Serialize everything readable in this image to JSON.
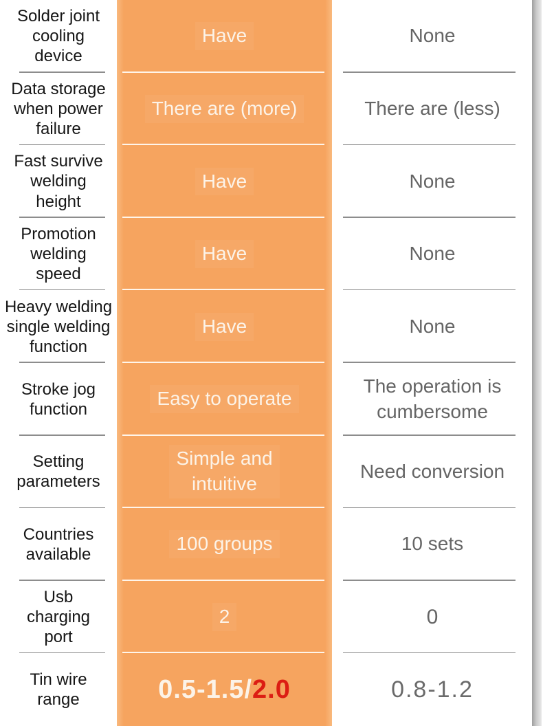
{
  "colors": {
    "accent_orange": "#f6a45f",
    "accent_orange_edge": "#f9b97e",
    "ours_text": "#fcf3e8",
    "highlight_red": "#dc1d13",
    "feature_text": "#161616",
    "theirs_text": "#656565",
    "divider_gray": "#8d8d8d",
    "divider_white": "#fffcf6"
  },
  "table": {
    "rows": [
      {
        "feature": "Solder joint\ncooling\ndevice",
        "ours": "Have",
        "theirs": "None"
      },
      {
        "feature": "Data storage\nwhen power\nfailure",
        "ours": "There are (more)",
        "theirs": "There are (less)"
      },
      {
        "feature": "Fast survive\nwelding\nheight",
        "ours": "Have",
        "theirs": "None"
      },
      {
        "feature": "Promotion\nwelding\nspeed",
        "ours": "Have",
        "theirs": "None"
      },
      {
        "feature": "Heavy welding\nsingle welding\nfunction",
        "ours": "Have",
        "theirs": "None"
      },
      {
        "feature": "Stroke jog\nfunction",
        "ours": "Easy to operate",
        "theirs": "The operation is\ncumbersome"
      },
      {
        "feature": "Setting\nparameters",
        "ours": "Simple and\nintuitive",
        "theirs": "Need conversion"
      },
      {
        "feature": "Countries\navailable",
        "ours": "100 groups",
        "theirs": "10 sets"
      },
      {
        "feature": "Usb\ncharging\nport",
        "ours": "2",
        "theirs": "0"
      },
      {
        "feature": "Tin wire\nrange",
        "ours_main": "0.5-1.5/",
        "ours_highlight": "2.0",
        "theirs": "0.8-1.2"
      }
    ]
  }
}
